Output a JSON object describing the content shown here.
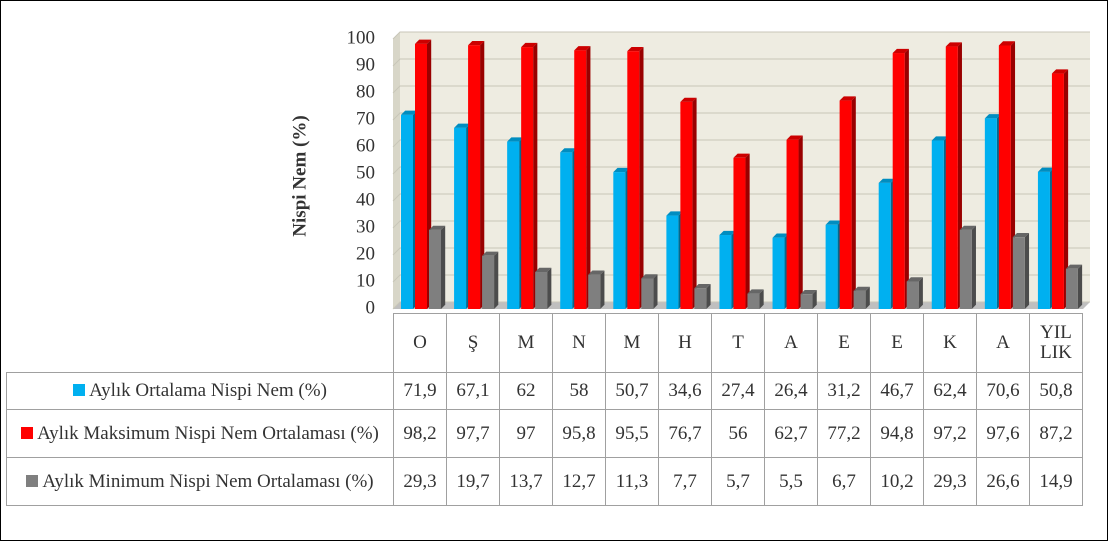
{
  "chart_data": {
    "type": "bar",
    "y_axis_label": "Nispi Nem (%)",
    "categories": [
      "O",
      "Ş",
      "M",
      "N",
      "M",
      "H",
      "T",
      "A",
      "E",
      "E",
      "K",
      "A",
      "YIL\nLIK"
    ],
    "series": [
      {
        "name": "Aylık Ortalama Nispi Nem (%)",
        "color": "#00b0f0",
        "values": [
          71.9,
          67.1,
          62,
          58,
          50.7,
          34.6,
          27.4,
          26.4,
          31.2,
          46.7,
          62.4,
          70.6,
          50.8
        ],
        "value_labels": [
          "71,9",
          "67,1",
          "62",
          "58",
          "50,7",
          "34,6",
          "27,4",
          "26,4",
          "31,2",
          "46,7",
          "62,4",
          "70,6",
          "50,8"
        ]
      },
      {
        "name": "Aylık Maksimum Nispi Nem Ortalaması (%)",
        "color": "#ff0000",
        "values": [
          98.2,
          97.7,
          97,
          95.8,
          95.5,
          76.7,
          56,
          62.7,
          77.2,
          94.8,
          97.2,
          97.6,
          87.2
        ],
        "value_labels": [
          "98,2",
          "97,7",
          "97",
          "95,8",
          "95,5",
          "76,7",
          "56",
          "62,7",
          "77,2",
          "94,8",
          "97,2",
          "97,6",
          "87,2"
        ]
      },
      {
        "name": "Aylık Minimum Nispi Nem Ortalaması (%)",
        "color": "#7f7f7f",
        "values": [
          29.3,
          19.7,
          13.7,
          12.7,
          11.3,
          7.7,
          5.7,
          5.5,
          6.7,
          10.2,
          29.3,
          26.6,
          14.9
        ],
        "value_labels": [
          "29,3",
          "19,7",
          "13,7",
          "12,7",
          "11,3",
          "7,7",
          "5,7",
          "5,5",
          "6,7",
          "10,2",
          "29,3",
          "26,6",
          "14,9"
        ]
      }
    ],
    "ylim": [
      0,
      100
    ],
    "yticks": [
      0,
      10,
      20,
      30,
      40,
      50,
      60,
      70,
      80,
      90,
      100
    ],
    "grid": true
  }
}
